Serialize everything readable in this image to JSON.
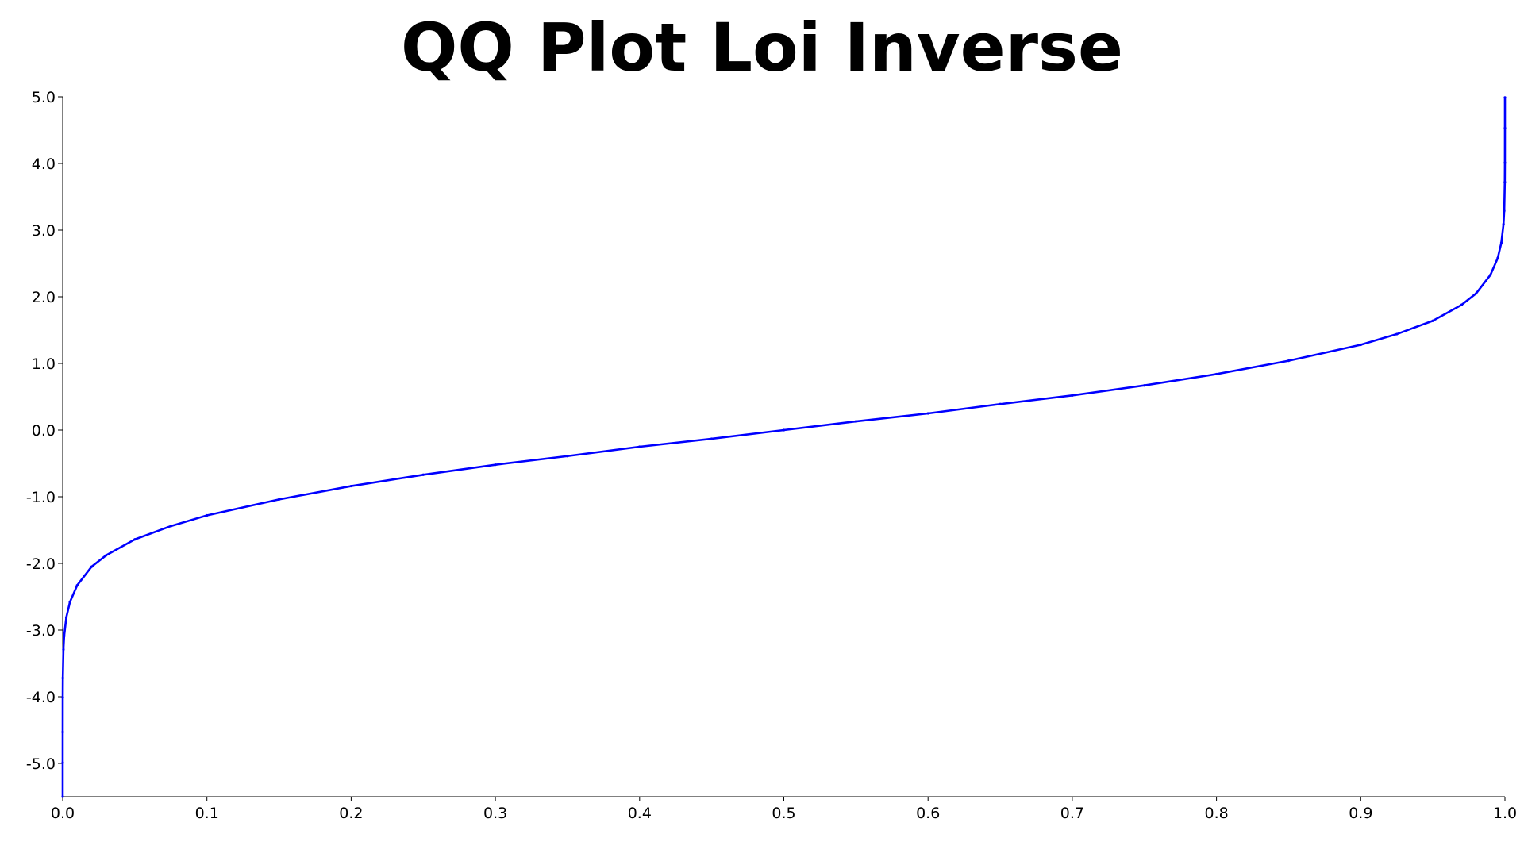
{
  "chart_data": {
    "type": "scatter",
    "title": "QQ Plot Loi Inverse",
    "xlabel": "",
    "ylabel": "",
    "xlim": [
      0.0,
      1.0
    ],
    "ylim": [
      -5.5,
      5.0
    ],
    "x_ticks": [
      "0.0",
      "0.1",
      "0.2",
      "0.3",
      "0.4",
      "0.5",
      "0.6",
      "0.7",
      "0.8",
      "0.9",
      "1.0"
    ],
    "y_ticks": [
      "5.0",
      "4.0",
      "3.0",
      "2.0",
      "1.0",
      "0.0",
      "-1.0",
      "-2.0",
      "-3.0",
      "-4.0",
      "-5.0"
    ],
    "grid": false,
    "legend": "none",
    "series": [
      {
        "color": "#0000ff",
        "marker": "point",
        "x": [
          1e-08,
          3e-07,
          3e-06,
          3e-05,
          0.0001,
          0.0005,
          0.001,
          0.0025,
          0.005,
          0.01,
          0.02,
          0.03,
          0.05,
          0.075,
          0.1,
          0.15,
          0.2,
          0.25,
          0.3,
          0.35,
          0.4,
          0.45,
          0.5,
          0.55,
          0.6,
          0.65,
          0.7,
          0.75,
          0.8,
          0.85,
          0.9,
          0.925,
          0.95,
          0.97,
          0.98,
          0.99,
          0.995,
          0.9975,
          0.999,
          0.9995,
          0.9999,
          0.99997,
          0.999997,
          0.9999997
        ],
        "y": [
          -5.61,
          -4.99,
          -4.53,
          -4.01,
          -3.72,
          -3.29,
          -3.09,
          -2.81,
          -2.58,
          -2.33,
          -2.05,
          -1.88,
          -1.64,
          -1.44,
          -1.28,
          -1.04,
          -0.84,
          -0.67,
          -0.52,
          -0.39,
          -0.25,
          -0.13,
          0.0,
          0.13,
          0.25,
          0.39,
          0.52,
          0.67,
          0.84,
          1.04,
          1.28,
          1.44,
          1.64,
          1.88,
          2.05,
          2.33,
          2.58,
          2.81,
          3.09,
          3.29,
          3.72,
          4.01,
          4.53,
          4.99
        ]
      }
    ]
  }
}
